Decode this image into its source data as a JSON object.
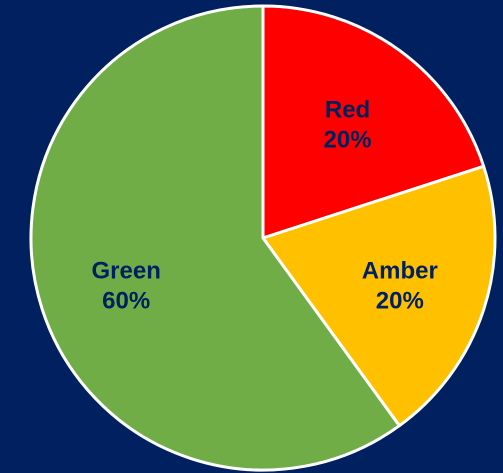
{
  "chart_data": {
    "type": "pie",
    "title": "",
    "start_angle_deg": 0,
    "direction": "clockwise",
    "slices": [
      {
        "label": "Red",
        "value": 20,
        "value_label": "20%",
        "color": "#FF0000",
        "text_color": "#002060"
      },
      {
        "label": "Amber",
        "value": 20,
        "value_label": "20%",
        "color": "#FFC000",
        "text_color": "#002060"
      },
      {
        "label": "Green",
        "value": 60,
        "value_label": "60%",
        "color": "#70AD47",
        "text_color": "#002060"
      }
    ],
    "slice_border_color": "#FFFFFF",
    "background_color": "#002060",
    "legend": "none"
  }
}
